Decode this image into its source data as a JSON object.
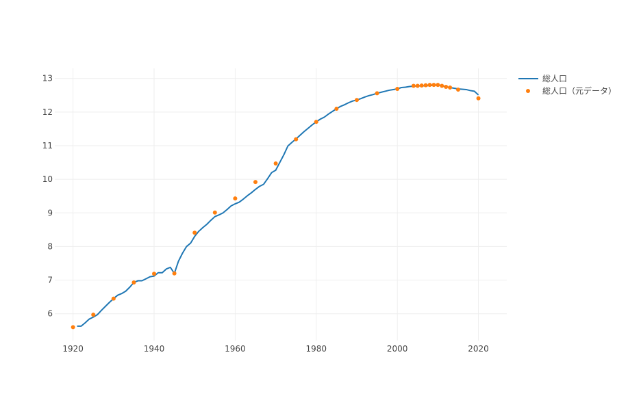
{
  "chart_data": {
    "type": "line",
    "title": "",
    "xlabel": "",
    "ylabel": "",
    "xlim": [
      1915.5,
      2027
    ],
    "ylim": [
      5.2,
      13.3
    ],
    "x_ticks": [
      1920,
      1940,
      1960,
      1980,
      2000,
      2020
    ],
    "y_ticks": [
      6,
      7,
      8,
      9,
      10,
      11,
      12,
      13
    ],
    "grid": true,
    "legend_position": "top-right",
    "colors": {
      "line": "#1f77b4",
      "markers": "#ff7f0e"
    },
    "series": [
      {
        "name": "総人口",
        "mode": "line",
        "x": [
          1921,
          1922,
          1923,
          1924,
          1925,
          1926,
          1927,
          1928,
          1929,
          1930,
          1931,
          1932,
          1933,
          1934,
          1935,
          1936,
          1937,
          1938,
          1939,
          1940,
          1941,
          1942,
          1943,
          1944,
          1945,
          1946,
          1947,
          1948,
          1949,
          1950,
          1951,
          1952,
          1953,
          1954,
          1955,
          1956,
          1957,
          1958,
          1959,
          1960,
          1961,
          1962,
          1963,
          1964,
          1965,
          1966,
          1967,
          1968,
          1969,
          1970,
          1971,
          1972,
          1973,
          1974,
          1975,
          1976,
          1977,
          1978,
          1979,
          1980,
          1981,
          1982,
          1983,
          1984,
          1985,
          1986,
          1987,
          1988,
          1989,
          1990,
          1991,
          1992,
          1993,
          1994,
          1995,
          1996,
          1997,
          1998,
          1999,
          2000,
          2001,
          2002,
          2003,
          2004,
          2005,
          2006,
          2007,
          2008,
          2009,
          2010,
          2011,
          2012,
          2013,
          2014,
          2015,
          2016,
          2017,
          2018,
          2019,
          2020
        ],
        "y": [
          5.63,
          5.63,
          5.73,
          5.84,
          5.9,
          5.97,
          6.1,
          6.22,
          6.34,
          6.45,
          6.55,
          6.6,
          6.67,
          6.79,
          6.93,
          6.98,
          6.98,
          7.04,
          7.1,
          7.12,
          7.22,
          7.22,
          7.33,
          7.38,
          7.2,
          7.56,
          7.8,
          8.0,
          8.1,
          8.3,
          8.45,
          8.56,
          8.66,
          8.78,
          8.89,
          8.94,
          9.0,
          9.1,
          9.21,
          9.27,
          9.32,
          9.41,
          9.51,
          9.6,
          9.7,
          9.79,
          9.85,
          10.02,
          10.2,
          10.27,
          10.5,
          10.73,
          10.99,
          11.1,
          11.2,
          11.31,
          11.42,
          11.52,
          11.62,
          11.71,
          11.79,
          11.85,
          11.94,
          12.02,
          12.1,
          12.17,
          12.22,
          12.28,
          12.33,
          12.36,
          12.4,
          12.45,
          12.49,
          12.52,
          12.56,
          12.59,
          12.62,
          12.65,
          12.67,
          12.69,
          12.73,
          12.74,
          12.76,
          12.77,
          12.78,
          12.78,
          12.78,
          12.79,
          12.79,
          12.81,
          12.78,
          12.75,
          12.73,
          12.71,
          12.69,
          12.68,
          12.67,
          12.64,
          12.62,
          12.51
        ]
      },
      {
        "name": "総人口（元データ）",
        "mode": "markers",
        "x": [
          1920,
          1925,
          1930,
          1935,
          1940,
          1945,
          1950,
          1955,
          1960,
          1965,
          1970,
          1975,
          1980,
          1985,
          1990,
          1995,
          2000,
          2004,
          2005,
          2006,
          2007,
          2008,
          2009,
          2010,
          2011,
          2012,
          2013,
          2015,
          2020
        ],
        "y": [
          5.6,
          5.97,
          6.45,
          6.93,
          7.19,
          7.2,
          8.41,
          9.01,
          9.43,
          9.92,
          10.47,
          11.19,
          11.71,
          12.1,
          12.36,
          12.56,
          12.69,
          12.78,
          12.78,
          12.79,
          12.8,
          12.81,
          12.81,
          12.81,
          12.78,
          12.75,
          12.73,
          12.67,
          12.41
        ]
      }
    ]
  }
}
